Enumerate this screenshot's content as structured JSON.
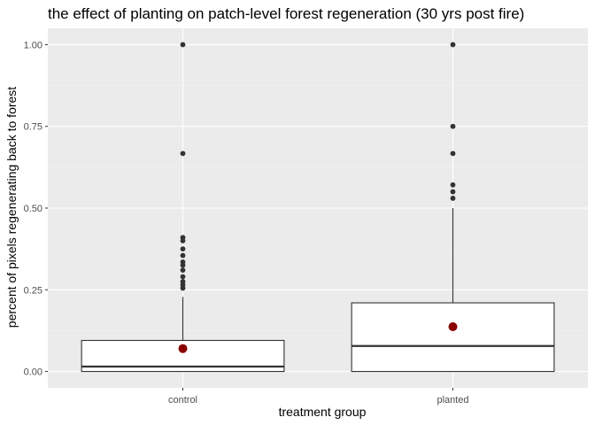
{
  "chart_data": {
    "type": "boxplot",
    "title": "the effect of planting on patch-level forest regeneration (30 yrs post fire)",
    "xlabel": "treatment group",
    "ylabel": "percent of pixels regenerating back to forest",
    "categories": [
      "control",
      "planted"
    ],
    "ylim": [
      -0.05,
      1.05
    ],
    "yticks": [
      0.0,
      0.25,
      0.5,
      0.75,
      1.0
    ],
    "ytick_labels": [
      "0.00",
      "0.25",
      "0.50",
      "0.75",
      "1.00"
    ],
    "grid": true,
    "boxes": [
      {
        "category": "control",
        "whisker_low": 0.0,
        "q1": 0.0,
        "median": 0.015,
        "q3": 0.095,
        "whisker_high": 0.228,
        "mean": 0.07,
        "outliers": [
          1.0,
          0.667,
          0.41,
          0.4,
          0.375,
          0.355,
          0.335,
          0.325,
          0.31,
          0.29,
          0.275,
          0.265,
          0.255
        ]
      },
      {
        "category": "planted",
        "whisker_low": 0.0,
        "q1": 0.0,
        "median": 0.078,
        "q3": 0.21,
        "whisker_high": 0.5,
        "mean": 0.137,
        "outliers": [
          1.0,
          0.75,
          0.667,
          0.571,
          0.55,
          0.53
        ]
      }
    ],
    "colors": {
      "panel": "#ebebeb",
      "grid_major": "#ffffff",
      "grid_minor": "#f2f2f2",
      "box_fill": "#ffffff",
      "box_line": "#333333",
      "outlier": "#333333",
      "mean_point": "#8b0000",
      "tick": "#333333"
    }
  }
}
